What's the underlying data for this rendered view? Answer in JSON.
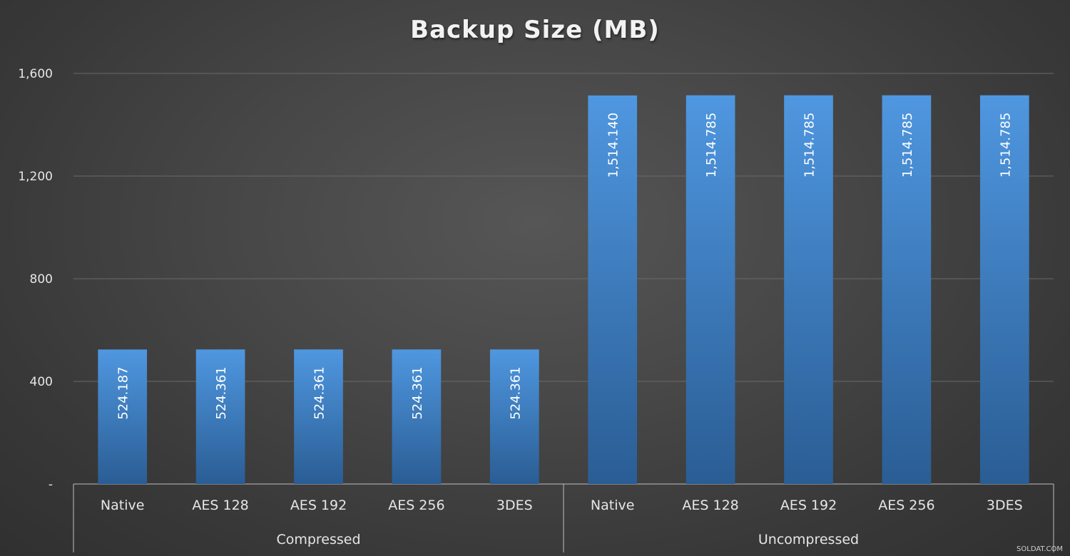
{
  "chart_data": {
    "type": "bar",
    "title": "Backup Size (MB)",
    "xlabel": "",
    "ylabel": "",
    "ylim": [
      0,
      1600
    ],
    "yticks": [
      {
        "value": 0,
        "label": "-"
      },
      {
        "value": 400,
        "label": "400"
      },
      {
        "value": 800,
        "label": "800"
      },
      {
        "value": 1200,
        "label": "1,200"
      },
      {
        "value": 1600,
        "label": "1,600"
      }
    ],
    "grid": true,
    "legend": "none",
    "bar_color": "#4a8fd6",
    "groups": [
      {
        "name": "Compressed",
        "categories": [
          "Native",
          "AES 128",
          "AES 192",
          "AES 256",
          "3DES"
        ],
        "values": [
          524.187,
          524.361,
          524.361,
          524.361,
          524.361
        ],
        "value_labels": [
          "524.187",
          "524.361",
          "524.361",
          "524.361",
          "524.361"
        ]
      },
      {
        "name": "Uncompressed",
        "categories": [
          "Native",
          "AES 128",
          "AES 192",
          "AES 256",
          "3DES"
        ],
        "values": [
          1514.14,
          1514.785,
          1514.785,
          1514.785,
          1514.785
        ],
        "value_labels": [
          "1,514.140",
          "1,514.785",
          "1,514.785",
          "1,514.785",
          "1,514.785"
        ]
      }
    ]
  },
  "watermark": "SOLDAT.COM"
}
